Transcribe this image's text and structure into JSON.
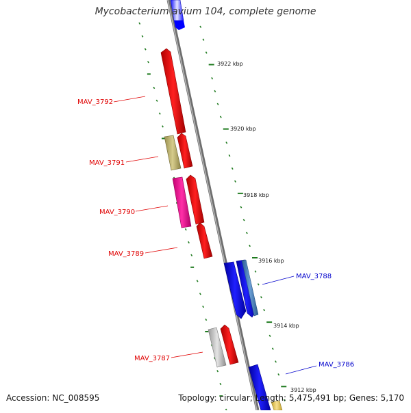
{
  "title": "Mycobacterium avium 104, complete genome",
  "accession": "Accession: NC_008595",
  "summary": "Topology: circular; Length: 5,475,491 bp; Genes: 5,170",
  "scale_labels": [
    "3922 kbp",
    "3920 kbp",
    "3918 kbp",
    "3916 kbp",
    "3914 kbp",
    "3912 kbp"
  ],
  "gene_labels": [
    {
      "name": "MAV_3792",
      "color": "#e00000"
    },
    {
      "name": "MAV_3791",
      "color": "#e00000"
    },
    {
      "name": "MAV_3790",
      "color": "#e00000"
    },
    {
      "name": "MAV_3789",
      "color": "#e00000"
    },
    {
      "name": "MAV_3788",
      "color": "#0000cc"
    },
    {
      "name": "MAV_3787",
      "color": "#e00000"
    },
    {
      "name": "MAV_3786",
      "color": "#0000cc"
    }
  ],
  "colors": {
    "forward_gene": "#ff0000",
    "reverse_gene": "#0000ff",
    "khaki_gene": "#c2b878",
    "magenta_gene": "#ff1a9a",
    "steelblue_gene": "#4a86c8",
    "gray_gene": "#c8c8c8",
    "yellow_gene": "#f0d060",
    "scale_tick": "#1e7a1e",
    "backbone": "#8a8a8a"
  }
}
